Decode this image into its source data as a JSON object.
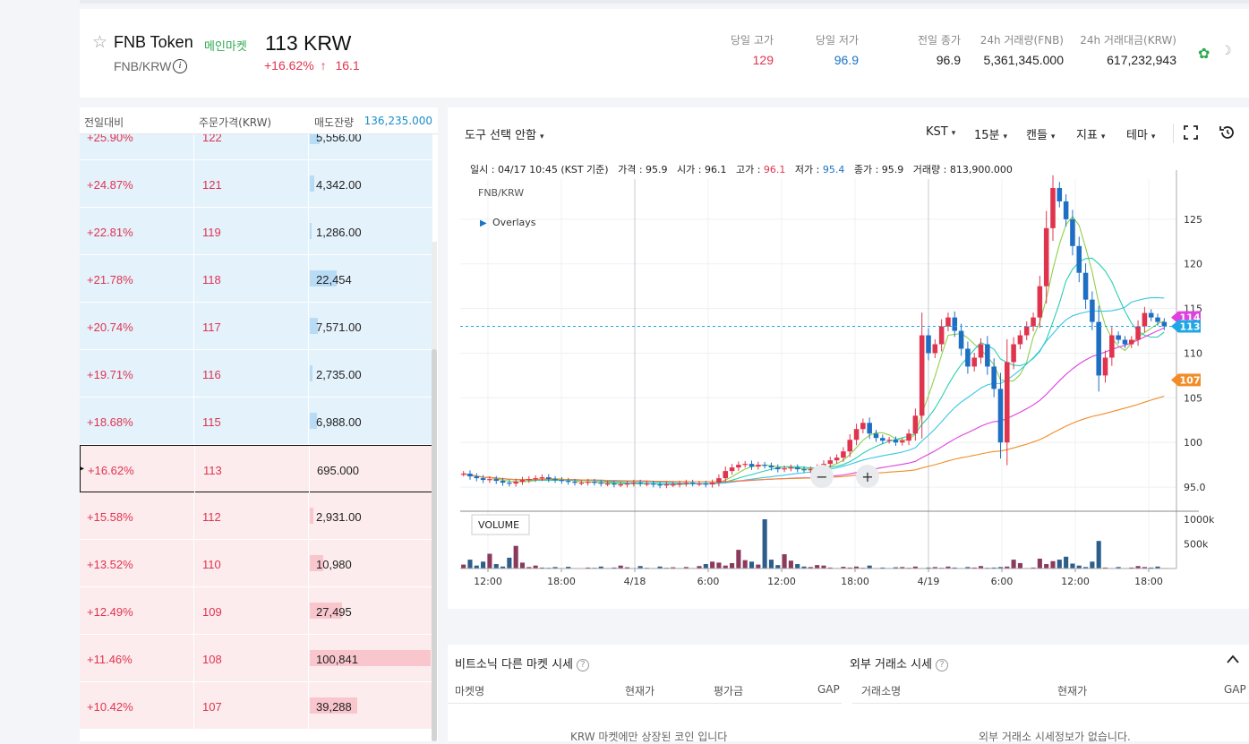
{
  "header": {
    "coin_name": "FNB Token",
    "market_badge": "메인마켓",
    "pair": "FNB/KRW",
    "price": "113 KRW",
    "change_pct": "+16.62%",
    "change_arrow": "↑",
    "change_abs": "16.1",
    "stats": [
      {
        "label": "당일 고가",
        "value": "129",
        "color": "#e0344e"
      },
      {
        "label": "당일 저가",
        "value": "96.9",
        "color": "#1a73c6"
      },
      {
        "label": "전일 종가",
        "value": "96.9",
        "color": "#222222"
      },
      {
        "label": "24h 거래량(FNB)",
        "value": "5,361,345.000",
        "color": "#222222"
      },
      {
        "label": "24h 거래대금(KRW)",
        "value": "617,232,943",
        "color": "#222222"
      }
    ]
  },
  "orderbook": {
    "headers": {
      "change": "전일대비",
      "price": "주문가격(KRW)",
      "amount": "매도잔량",
      "total": "136,235.000"
    },
    "rows": [
      {
        "change": "+25.90%",
        "price": "122",
        "amount": "5,556.00",
        "side": "ask",
        "depth": 0.08
      },
      {
        "change": "+24.87%",
        "price": "121",
        "amount": "4,342.00",
        "side": "ask",
        "depth": 0.04
      },
      {
        "change": "+22.81%",
        "price": "119",
        "amount": "1,286.00",
        "side": "ask",
        "depth": 0.01
      },
      {
        "change": "+21.78%",
        "price": "118",
        "amount": "22,454",
        "side": "ask",
        "depth": 0.22
      },
      {
        "change": "+20.74%",
        "price": "117",
        "amount": "7,571.00",
        "side": "ask",
        "depth": 0.07
      },
      {
        "change": "+19.71%",
        "price": "116",
        "amount": "2,735.00",
        "side": "ask",
        "depth": 0.02
      },
      {
        "change": "+18.68%",
        "price": "115",
        "amount": "6,988.00",
        "side": "ask",
        "depth": 0.06
      },
      {
        "change": "+16.62%",
        "price": "113",
        "amount": "695.000",
        "side": "current",
        "depth": 0.0
      },
      {
        "change": "+15.58%",
        "price": "112",
        "amount": "2,931.00",
        "side": "bid",
        "depth": 0.03
      },
      {
        "change": "+13.52%",
        "price": "110",
        "amount": "10,980",
        "side": "bid",
        "depth": 0.11
      },
      {
        "change": "+12.49%",
        "price": "109",
        "amount": "27,495",
        "side": "bid",
        "depth": 0.27
      },
      {
        "change": "+11.46%",
        "price": "108",
        "amount": "100,841",
        "side": "bid",
        "depth": 1.0
      },
      {
        "change": "+10.42%",
        "price": "107",
        "amount": "39,288",
        "side": "bid",
        "depth": 0.39
      }
    ]
  },
  "chart_toolbar": {
    "tool_select": "도구 선택 안함",
    "timezone": "KST",
    "interval": "15분",
    "chart_type": "캔들",
    "indicator": "지표",
    "theme": "테마"
  },
  "ohlc": {
    "date_label": "일시 : 04/17 10:45 (KST 기준)",
    "price_label": "가격 : 95.9",
    "open_label": "시가 : 96.1",
    "high_key": "고가 : ",
    "high_val": "96.1",
    "low_key": "저가 : ",
    "low_val": "95.4",
    "close_label": "종가 : 95.9",
    "volume_label": "거래량 : 813,900.000"
  },
  "chart_data": {
    "type": "candlestick",
    "symbol": "FNB/KRW",
    "overlays_label": "Overlays",
    "volume_label": "VOLUME",
    "x_ticks": [
      "12:00",
      "18:00",
      "4/18",
      "6:00",
      "12:00",
      "18:00",
      "4/19",
      "6:00",
      "12:00",
      "18:00"
    ],
    "y_ticks": [
      "95.0",
      "100",
      "105",
      "110",
      "115",
      "120",
      "125"
    ],
    "ylim": [
      92.3,
      129.5
    ],
    "volume_ticks": [
      "1000k",
      "500k"
    ],
    "current_price": 113,
    "price_tags": [
      {
        "label": "114",
        "value": 114,
        "color": "#e040e0"
      },
      {
        "label": "113",
        "value": 113,
        "color": "#1ea7e4"
      },
      {
        "label": "107",
        "value": 107,
        "color": "#f28c28"
      }
    ],
    "close_series": [
      96.5,
      96.2,
      96.0,
      95.8,
      95.9,
      95.7,
      95.5,
      95.4,
      95.6,
      95.8,
      95.9,
      96.0,
      96.1,
      95.9,
      95.8,
      95.7,
      95.6,
      95.5,
      95.5,
      95.6,
      95.5,
      95.4,
      95.4,
      95.3,
      95.3,
      95.4,
      95.5,
      95.4,
      95.4,
      95.3,
      95.2,
      95.3,
      95.3,
      95.4,
      95.5,
      95.4,
      95.4,
      95.3,
      95.5,
      96.0,
      96.8,
      97.2,
      97.5,
      97.6,
      97.3,
      97.5,
      97.4,
      97.2,
      97.0,
      97.1,
      97.2,
      97.0,
      96.9,
      97.0,
      97.2,
      97.6,
      98.0,
      98.3,
      99.0,
      100.3,
      101.5,
      102.2,
      101.0,
      100.5,
      100.2,
      100.3,
      100.0,
      100.2,
      101.0,
      103.0,
      112.0,
      110.0,
      111.0,
      113.0,
      114.0,
      112.5,
      110.5,
      108.5,
      109.5,
      111.0,
      108.5,
      106.0,
      100.0,
      109.0,
      111.0,
      112.0,
      113.0,
      114.0,
      117.5,
      124.0,
      128.5,
      127.0,
      125.0,
      122.0,
      119.0,
      116.0,
      113.5,
      107.5,
      109.5,
      112.0,
      111.5,
      111.0,
      111.5,
      113.0,
      114.5,
      114.0,
      113.5,
      113.0
    ],
    "volume_series": [
      80,
      180,
      60,
      140,
      300,
      90,
      40,
      220,
      460,
      120,
      30,
      60,
      20,
      15,
      30,
      10,
      35,
      5,
      5,
      20,
      15,
      40,
      10,
      20,
      60,
      25,
      10,
      50,
      15,
      10,
      40,
      15,
      25,
      10,
      30,
      10,
      50,
      90,
      140,
      120,
      60,
      110,
      380,
      170,
      140,
      80,
      1000,
      180,
      70,
      290,
      160,
      90,
      40,
      30,
      70,
      60,
      20,
      10,
      35,
      20,
      40,
      15,
      60,
      10,
      20,
      10,
      25,
      30,
      15,
      40,
      10,
      20,
      30,
      15,
      40,
      20,
      10,
      30,
      20,
      50,
      15,
      20,
      30,
      40,
      180,
      110,
      10,
      20,
      200,
      90,
      150,
      180,
      240,
      100,
      60,
      30,
      140,
      560,
      20,
      10,
      30,
      10,
      20,
      50,
      30,
      20,
      40,
      10
    ]
  },
  "chart_controls": {
    "zoom_out": "−",
    "zoom_in": "+"
  },
  "bottom": {
    "left_title": "비트소닉 다른 마켓 시세",
    "left_cols": [
      "마켓명",
      "현재가",
      "평가금",
      "GAP"
    ],
    "left_note": "KRW 마켓에만 상장된 코인 입니다",
    "right_title": "외부 거래소 시세",
    "right_cols": [
      "거래소명",
      "현재가",
      "GAP"
    ],
    "right_note": "외부 거래소 시세정보가 없습니다."
  }
}
